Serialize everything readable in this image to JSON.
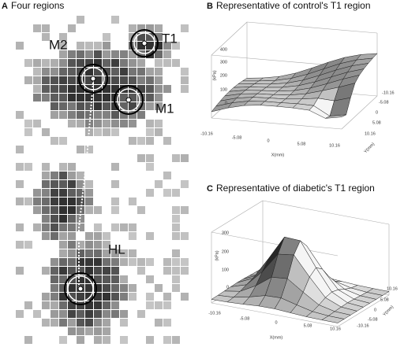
{
  "panel_a": {
    "letter": "A",
    "title": "Four regions",
    "regions": [
      "M2",
      "T1",
      "M1",
      "HL"
    ]
  },
  "panel_b": {
    "letter": "B",
    "title": "Representative of control's T1 region",
    "z_label": "(kPa)",
    "z_ticks": [
      "400",
      "300",
      "200",
      "100",
      "0"
    ],
    "x_ticks": [
      "-10.16",
      "-5.08",
      "0",
      "5.08",
      "10.16"
    ],
    "y_ticks": [
      "-10.16",
      "-5.08",
      "0",
      "5.08",
      "10.16"
    ],
    "x_label": "X(mm)",
    "y_label": "Y(mm)"
  },
  "panel_c": {
    "letter": "C",
    "title": "Representative of diabetic's T1 region",
    "z_label": "(kPa)",
    "z_ticks": [
      "300",
      "200",
      "100",
      "0"
    ],
    "x_ticks": [
      "-10.16",
      "-5.08",
      "0",
      "5.08",
      "10.16"
    ],
    "y_ticks": [
      "10.16",
      "5.08",
      "0",
      "-5.08",
      "-10.16"
    ],
    "x_label": "X(mm)",
    "y_label": "Y(mm)"
  }
}
